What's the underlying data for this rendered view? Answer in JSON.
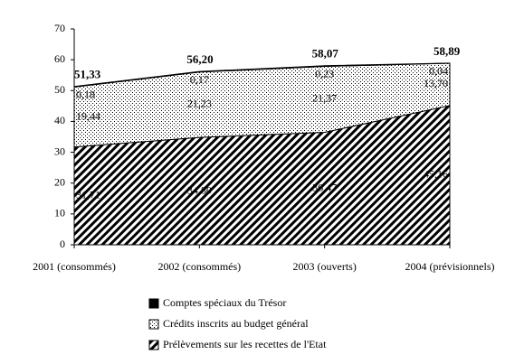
{
  "chart_data": {
    "type": "stacked-area",
    "categories": [
      "2001 (consommés)",
      "2002 (consommés)",
      "2003 (ouverts)",
      "2004 (prévisionnels)"
    ],
    "series": [
      {
        "name": "Comptes spéciaux du Trésor",
        "color": "#000000",
        "pattern": "solid",
        "values": [
          0.18,
          0.17,
          0.23,
          0.04
        ],
        "value_labels": [
          "0,18",
          "0,17",
          "0,23",
          "0,04"
        ]
      },
      {
        "name": "Crédits inscrits au budget général",
        "color": "#000000",
        "pattern": "dots",
        "values": [
          19.44,
          21.23,
          21.37,
          13.7
        ],
        "value_labels": [
          "19,44",
          "21,23",
          "21,37",
          "13,70"
        ]
      },
      {
        "name": "Prélèvements sur les recettes de l'Etat",
        "color": "#000000",
        "pattern": "hatch",
        "values": [
          31.71,
          34.8,
          36.47,
          45.16
        ],
        "value_labels": [
          "31,71",
          "34,80",
          "36,47",
          "45,16"
        ]
      }
    ],
    "totals": {
      "values": [
        51.33,
        56.2,
        58.07,
        58.89
      ],
      "value_labels": [
        "51,33",
        "56,20",
        "58,07",
        "58,89"
      ]
    },
    "ylim": [
      0,
      70
    ],
    "yticks": [
      0,
      10,
      20,
      30,
      40,
      50,
      60,
      70
    ],
    "grid": false
  }
}
